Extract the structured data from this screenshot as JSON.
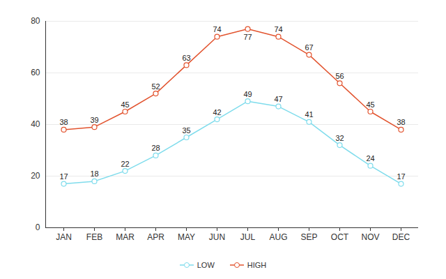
{
  "chart_data": {
    "type": "line",
    "categories": [
      "JAN",
      "FEB",
      "MAR",
      "APR",
      "MAY",
      "JUN",
      "JUL",
      "AUG",
      "SEP",
      "OCT",
      "NOV",
      "DEC"
    ],
    "series": [
      {
        "name": "LOW",
        "color": "#7fdcec",
        "values": [
          17,
          18,
          22,
          28,
          35,
          42,
          49,
          47,
          41,
          32,
          24,
          17
        ]
      },
      {
        "name": "HIGH",
        "color": "#e2532e",
        "values": [
          38,
          39,
          45,
          52,
          63,
          74,
          77,
          74,
          67,
          56,
          45,
          38
        ]
      }
    ],
    "ylim": [
      0,
      80
    ],
    "yticks": [
      0,
      20,
      40,
      60,
      80
    ],
    "grid": true,
    "data_labels": true,
    "legend": "bottom",
    "marker": "circle",
    "line_style": "solid"
  }
}
